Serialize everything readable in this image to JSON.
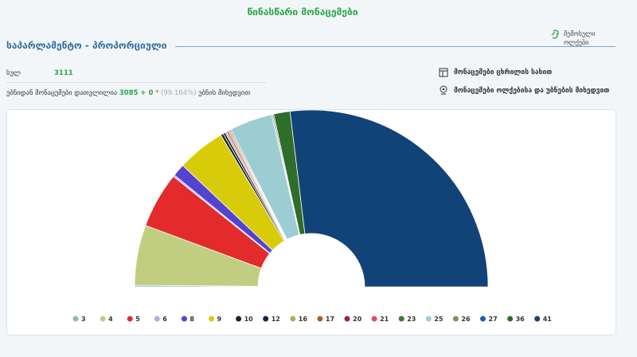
{
  "header": {
    "title": "წინასწარი მონაცემები"
  },
  "section": {
    "title": "საპარლამენტო - პროპორციული",
    "side_link": "შემოსული ოლქები"
  },
  "stats": {
    "total_label": "სულ",
    "total_value": "3111",
    "counted_prefix": "უბნიდან მონაცემები დათვლილია",
    "counted_value": "3085 + 0",
    "asterisk": "*",
    "percent": "(99.164%)",
    "counted_suffix": "უბნის მიხედვით"
  },
  "links": [
    "მონაცემები ცხრილის სახით",
    "მონაცემები ოლქებისა და უბნების მიხედვით"
  ],
  "chart_data": {
    "type": "semi-donut",
    "categories": [
      "3",
      "4",
      "5",
      "6",
      "8",
      "9",
      "10",
      "12",
      "16",
      "17",
      "20",
      "21",
      "23",
      "25",
      "26",
      "27",
      "36",
      "41"
    ],
    "values": [
      0.3,
      11,
      10.2,
      0.3,
      2.3,
      8.8,
      0.5,
      0.4,
      0.3,
      0.3,
      0.2,
      0.2,
      0.2,
      7.8,
      0.2,
      0.2,
      3.0,
      53.9
    ],
    "colors": [
      "#8cbcbc",
      "#c1cd80",
      "#e42b2b",
      "#b9aad8",
      "#5443d2",
      "#d8cc0a",
      "#222222",
      "#13224a",
      "#a9b35a",
      "#b95a2a",
      "#a8185b",
      "#e84c6b",
      "#3b7c2f",
      "#9ccdd3",
      "#8a8a5a",
      "#1e5fb0",
      "#2f6d2a",
      "#124378"
    ]
  }
}
